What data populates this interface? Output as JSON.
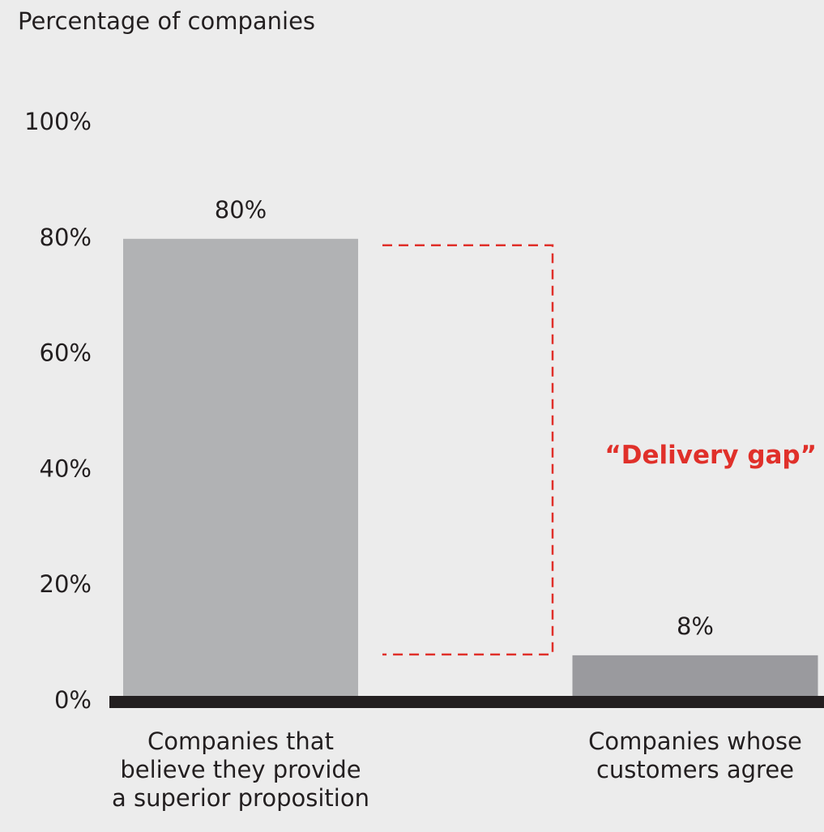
{
  "chart_data": {
    "type": "bar",
    "y_axis_label": "Percentage of companies",
    "categories": [
      "Companies that\nbelieve they provide\na superior proposition",
      "Companies whose\ncustomers agree"
    ],
    "values": [
      80,
      8
    ],
    "value_labels": [
      "80%",
      "8%"
    ],
    "colors": [
      "#b1b2b4",
      "#9a9a9e"
    ],
    "ylim": [
      0,
      100
    ],
    "yticks": [
      {
        "value": 0,
        "label": "0%"
      },
      {
        "value": 20,
        "label": "20%"
      },
      {
        "value": 40,
        "label": "40%"
      },
      {
        "value": 60,
        "label": "60%"
      },
      {
        "value": 80,
        "label": "80%"
      },
      {
        "value": 100,
        "label": "100%"
      }
    ],
    "annotation": {
      "text": "“Delivery gap”",
      "color": "#e0302a"
    }
  }
}
